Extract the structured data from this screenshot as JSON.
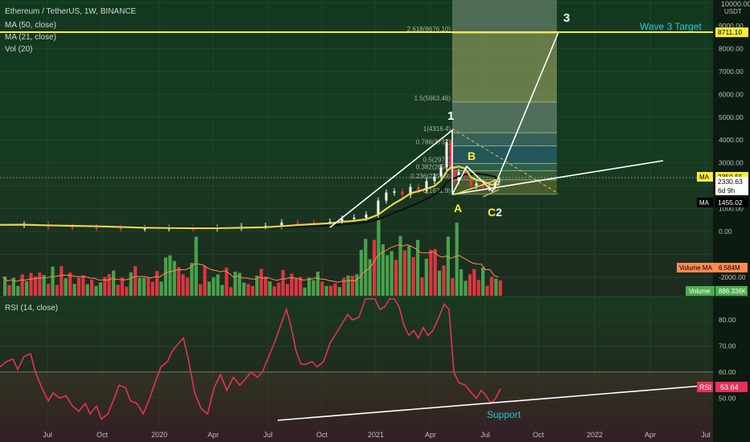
{
  "header": {
    "title": "Ethereum / TetherUS, 1W, BINANCE",
    "indicators": [
      "MA (50, close)",
      "MA (21, close)",
      "Vol (20)"
    ],
    "rsi_label": "RSI (14, close)"
  },
  "axis": {
    "currency_label": "USDT",
    "top_label": "10000.00"
  },
  "colors": {
    "bg_top": "#12391f",
    "bg_mid": "#1a3a22",
    "bg_bottom": "#231a1e",
    "bull": "#4caf50",
    "bear": "#f23645",
    "ma_yellow": "#e8d44d",
    "ma_black": "#111111",
    "target_line": "#ffeb3b",
    "rsi_line": "#e8305a",
    "white_line": "#ffffff"
  },
  "chart_data": [
    {
      "type": "line",
      "pane": "price",
      "title": "Ethereum / TetherUS, 1W, BINANCE",
      "y_ticks": [
        10000,
        9000,
        8000,
        7000,
        6000,
        5000,
        4000,
        3000,
        2000,
        1000,
        0,
        -1000,
        -2000
      ],
      "y_tick_labels": [
        "",
        "9000.00",
        "8000.00",
        "7000.00",
        "6000.00",
        "5000.00",
        "4000.00",
        "3000.00",
        "2000.00",
        "1000.00",
        "0.00",
        "",
        "-2000.00"
      ],
      "ylim": [
        -2700,
        10000
      ],
      "x_ticks": [
        "Jul",
        "Oct",
        "2020",
        "Apr",
        "Jul",
        "Oct",
        "2021",
        "Apr",
        "Jul",
        "Oct",
        "2022",
        "Apr",
        "Jul"
      ],
      "price_labels": [
        {
          "label": "",
          "value": "8711.10",
          "price": 8711.1,
          "color": "#ffeb3b",
          "text_color": "#000000"
        },
        {
          "label": "MA",
          "value": "2350.55",
          "price": 2390,
          "color": "#ffeb3b",
          "text_color": "#000000"
        },
        {
          "label": "",
          "value": "2330.63",
          "price": 2180,
          "color": "#ffffff",
          "text_color": "#000000"
        },
        {
          "label": "",
          "value": "6d 9h",
          "price": 1800,
          "color": "#ffffff",
          "text_color": "#000000"
        },
        {
          "label": "MA",
          "value": "1455.02",
          "price": 1270,
          "color": "#000000",
          "text_color": "#ffffff"
        }
      ],
      "fib_levels": [
        {
          "label": "2.618(8676.10)",
          "price": 8676.1
        },
        {
          "label": "1.5(5663.46)",
          "price": 5663.46
        },
        {
          "label": "1(4316.4)",
          "price": 4316.4
        },
        {
          "label": "0.786(3737)",
          "price": 3737
        },
        {
          "label": "0.5(2972)",
          "price": 2972
        },
        {
          "label": "0.382(2651)",
          "price": 2651
        },
        {
          "label": "0.236(2257.9)",
          "price": 2257.9
        },
        {
          "label": "0(1621.9)",
          "price": 1621.9
        }
      ],
      "annotations": [
        {
          "text": "1",
          "color": "#ffffff"
        },
        {
          "text": "B",
          "color": "#ffeb3b"
        },
        {
          "text": "A",
          "color": "#ffeb3b"
        },
        {
          "text": "C",
          "color": "#ffeb3b"
        },
        {
          "text": "2",
          "color": "#ffffff"
        },
        {
          "text": "3",
          "color": "#ffffff"
        },
        {
          "text": "Wave 3 Target",
          "color": "#26c6da"
        }
      ],
      "price_series": [
        [
          0,
          290
        ],
        [
          30,
          300
        ],
        [
          60,
          210
        ],
        [
          90,
          180
        ],
        [
          120,
          150
        ],
        [
          150,
          135
        ],
        [
          180,
          140
        ],
        [
          210,
          150
        ],
        [
          240,
          130
        ],
        [
          270,
          160
        ],
        [
          300,
          230
        ],
        [
          330,
          240
        ],
        [
          350,
          390
        ],
        [
          370,
          380
        ],
        [
          390,
          360
        ],
        [
          410,
          420
        ],
        [
          425,
          560
        ],
        [
          440,
          600
        ],
        [
          455,
          740
        ],
        [
          470,
          1350
        ],
        [
          480,
          1700
        ],
        [
          490,
          1750
        ],
        [
          500,
          1600
        ],
        [
          510,
          1950
        ],
        [
          520,
          1800
        ],
        [
          530,
          2200
        ],
        [
          540,
          2400
        ],
        [
          548,
          2800
        ],
        [
          555,
          3900
        ],
        [
          560,
          2700
        ],
        [
          565,
          2200
        ],
        [
          570,
          2600
        ],
        [
          578,
          2400
        ],
        [
          585,
          2000
        ],
        [
          592,
          2100
        ],
        [
          600,
          1900
        ],
        [
          608,
          1950
        ],
        [
          615,
          2150
        ],
        [
          620,
          2330
        ]
      ]
    },
    {
      "type": "bar",
      "pane": "volume",
      "series_label": "Volume",
      "volume_ma_label": "Volume MA",
      "volume_ma_value": "6.584M",
      "volume_value": "886.336K"
    },
    {
      "type": "line",
      "pane": "rsi",
      "title": "RSI (14, close)",
      "y_ticks": [
        80,
        70,
        60,
        50
      ],
      "y_tick_labels": [
        "80.00",
        "70.00",
        "60.00",
        "50.00"
      ],
      "ylim": [
        40,
        87
      ],
      "band_upper": 60,
      "band_lower": 40,
      "current_value": "53.64",
      "current_label": "RSI",
      "support_label": "Support",
      "rsi_series": [
        [
          0,
          62
        ],
        [
          8,
          64
        ],
        [
          16,
          65
        ],
        [
          22,
          61
        ],
        [
          30,
          66
        ],
        [
          38,
          67
        ],
        [
          44,
          60
        ],
        [
          52,
          54
        ],
        [
          60,
          49
        ],
        [
          66,
          52
        ],
        [
          74,
          50
        ],
        [
          82,
          51
        ],
        [
          90,
          47
        ],
        [
          98,
          45
        ],
        [
          106,
          48
        ],
        [
          112,
          44
        ],
        [
          120,
          47
        ],
        [
          126,
          42
        ],
        [
          134,
          44
        ],
        [
          142,
          50
        ],
        [
          148,
          55
        ],
        [
          156,
          54
        ],
        [
          162,
          49
        ],
        [
          170,
          48
        ],
        [
          178,
          44
        ],
        [
          186,
          50
        ],
        [
          194,
          57
        ],
        [
          200,
          62
        ],
        [
          208,
          64
        ],
        [
          214,
          68
        ],
        [
          222,
          71
        ],
        [
          228,
          73
        ],
        [
          234,
          65
        ],
        [
          242,
          52
        ],
        [
          250,
          46
        ],
        [
          258,
          44
        ],
        [
          266,
          54
        ],
        [
          274,
          59
        ],
        [
          282,
          53
        ],
        [
          290,
          58
        ],
        [
          298,
          55
        ],
        [
          304,
          57
        ],
        [
          312,
          60
        ],
        [
          320,
          58
        ],
        [
          326,
          60
        ],
        [
          334,
          66
        ],
        [
          342,
          72
        ],
        [
          350,
          79
        ],
        [
          356,
          84
        ],
        [
          362,
          77
        ],
        [
          368,
          68
        ],
        [
          374,
          63
        ],
        [
          380,
          63
        ],
        [
          388,
          64
        ],
        [
          394,
          62
        ],
        [
          402,
          64
        ],
        [
          410,
          71
        ],
        [
          416,
          74
        ],
        [
          424,
          78
        ],
        [
          432,
          82
        ],
        [
          438,
          80
        ],
        [
          446,
          81
        ],
        [
          454,
          88
        ],
        [
          460,
          95
        ],
        [
          466,
          88
        ],
        [
          472,
          84
        ],
        [
          478,
          85
        ],
        [
          484,
          91
        ],
        [
          490,
          88
        ],
        [
          496,
          85
        ],
        [
          502,
          78
        ],
        [
          508,
          74
        ],
        [
          514,
          76
        ],
        [
          520,
          73
        ],
        [
          526,
          77
        ],
        [
          532,
          74
        ],
        [
          538,
          76
        ],
        [
          544,
          80
        ],
        [
          552,
          86
        ],
        [
          558,
          84
        ],
        [
          564,
          60
        ],
        [
          570,
          56
        ],
        [
          578,
          55
        ],
        [
          586,
          52
        ],
        [
          592,
          50
        ],
        [
          598,
          53
        ],
        [
          604,
          51
        ],
        [
          610,
          48
        ],
        [
          616,
          50
        ],
        [
          622,
          53.6
        ]
      ]
    }
  ]
}
